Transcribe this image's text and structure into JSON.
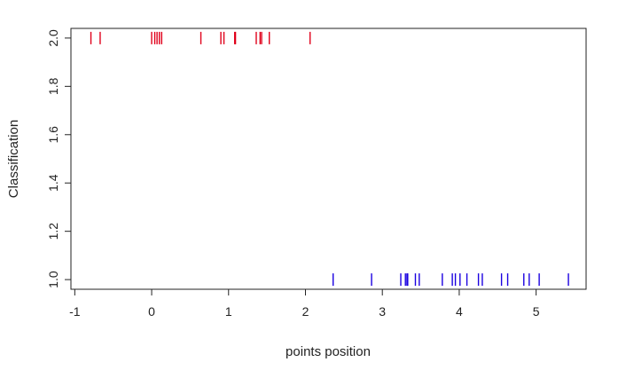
{
  "chart_data": {
    "type": "scatter",
    "title": "",
    "xlabel": "points position",
    "ylabel": "Classification",
    "xlim": [
      -1.05,
      5.65
    ],
    "ylim": [
      0.96,
      2.04
    ],
    "x_ticks": [
      -1,
      0,
      1,
      2,
      3,
      4,
      5
    ],
    "x_tick_labels": [
      "-1",
      "0",
      "1",
      "2",
      "3",
      "4",
      "5"
    ],
    "y_ticks": [
      1.0,
      1.2,
      1.4,
      1.6,
      1.8,
      2.0
    ],
    "y_tick_labels": [
      "1.0",
      "1.2",
      "1.4",
      "1.6",
      "1.8",
      "2.0"
    ],
    "grid": false,
    "marker": "vertical-bar",
    "series": [
      {
        "color": "#e0001a",
        "y": 2.0,
        "x": [
          -0.79,
          -0.67,
          0.0,
          0.04,
          0.07,
          0.1,
          0.13,
          0.64,
          0.9,
          0.94,
          1.08,
          1.09,
          1.36,
          1.41,
          1.43,
          1.53,
          2.06
        ]
      },
      {
        "color": "#1a00e0",
        "y": 1.0,
        "x": [
          2.36,
          2.86,
          3.24,
          3.3,
          3.32,
          3.33,
          3.43,
          3.48,
          3.78,
          3.91,
          3.95,
          4.01,
          4.1,
          4.25,
          4.3,
          4.55,
          4.63,
          4.84,
          4.91,
          5.04,
          5.42
        ]
      }
    ]
  }
}
